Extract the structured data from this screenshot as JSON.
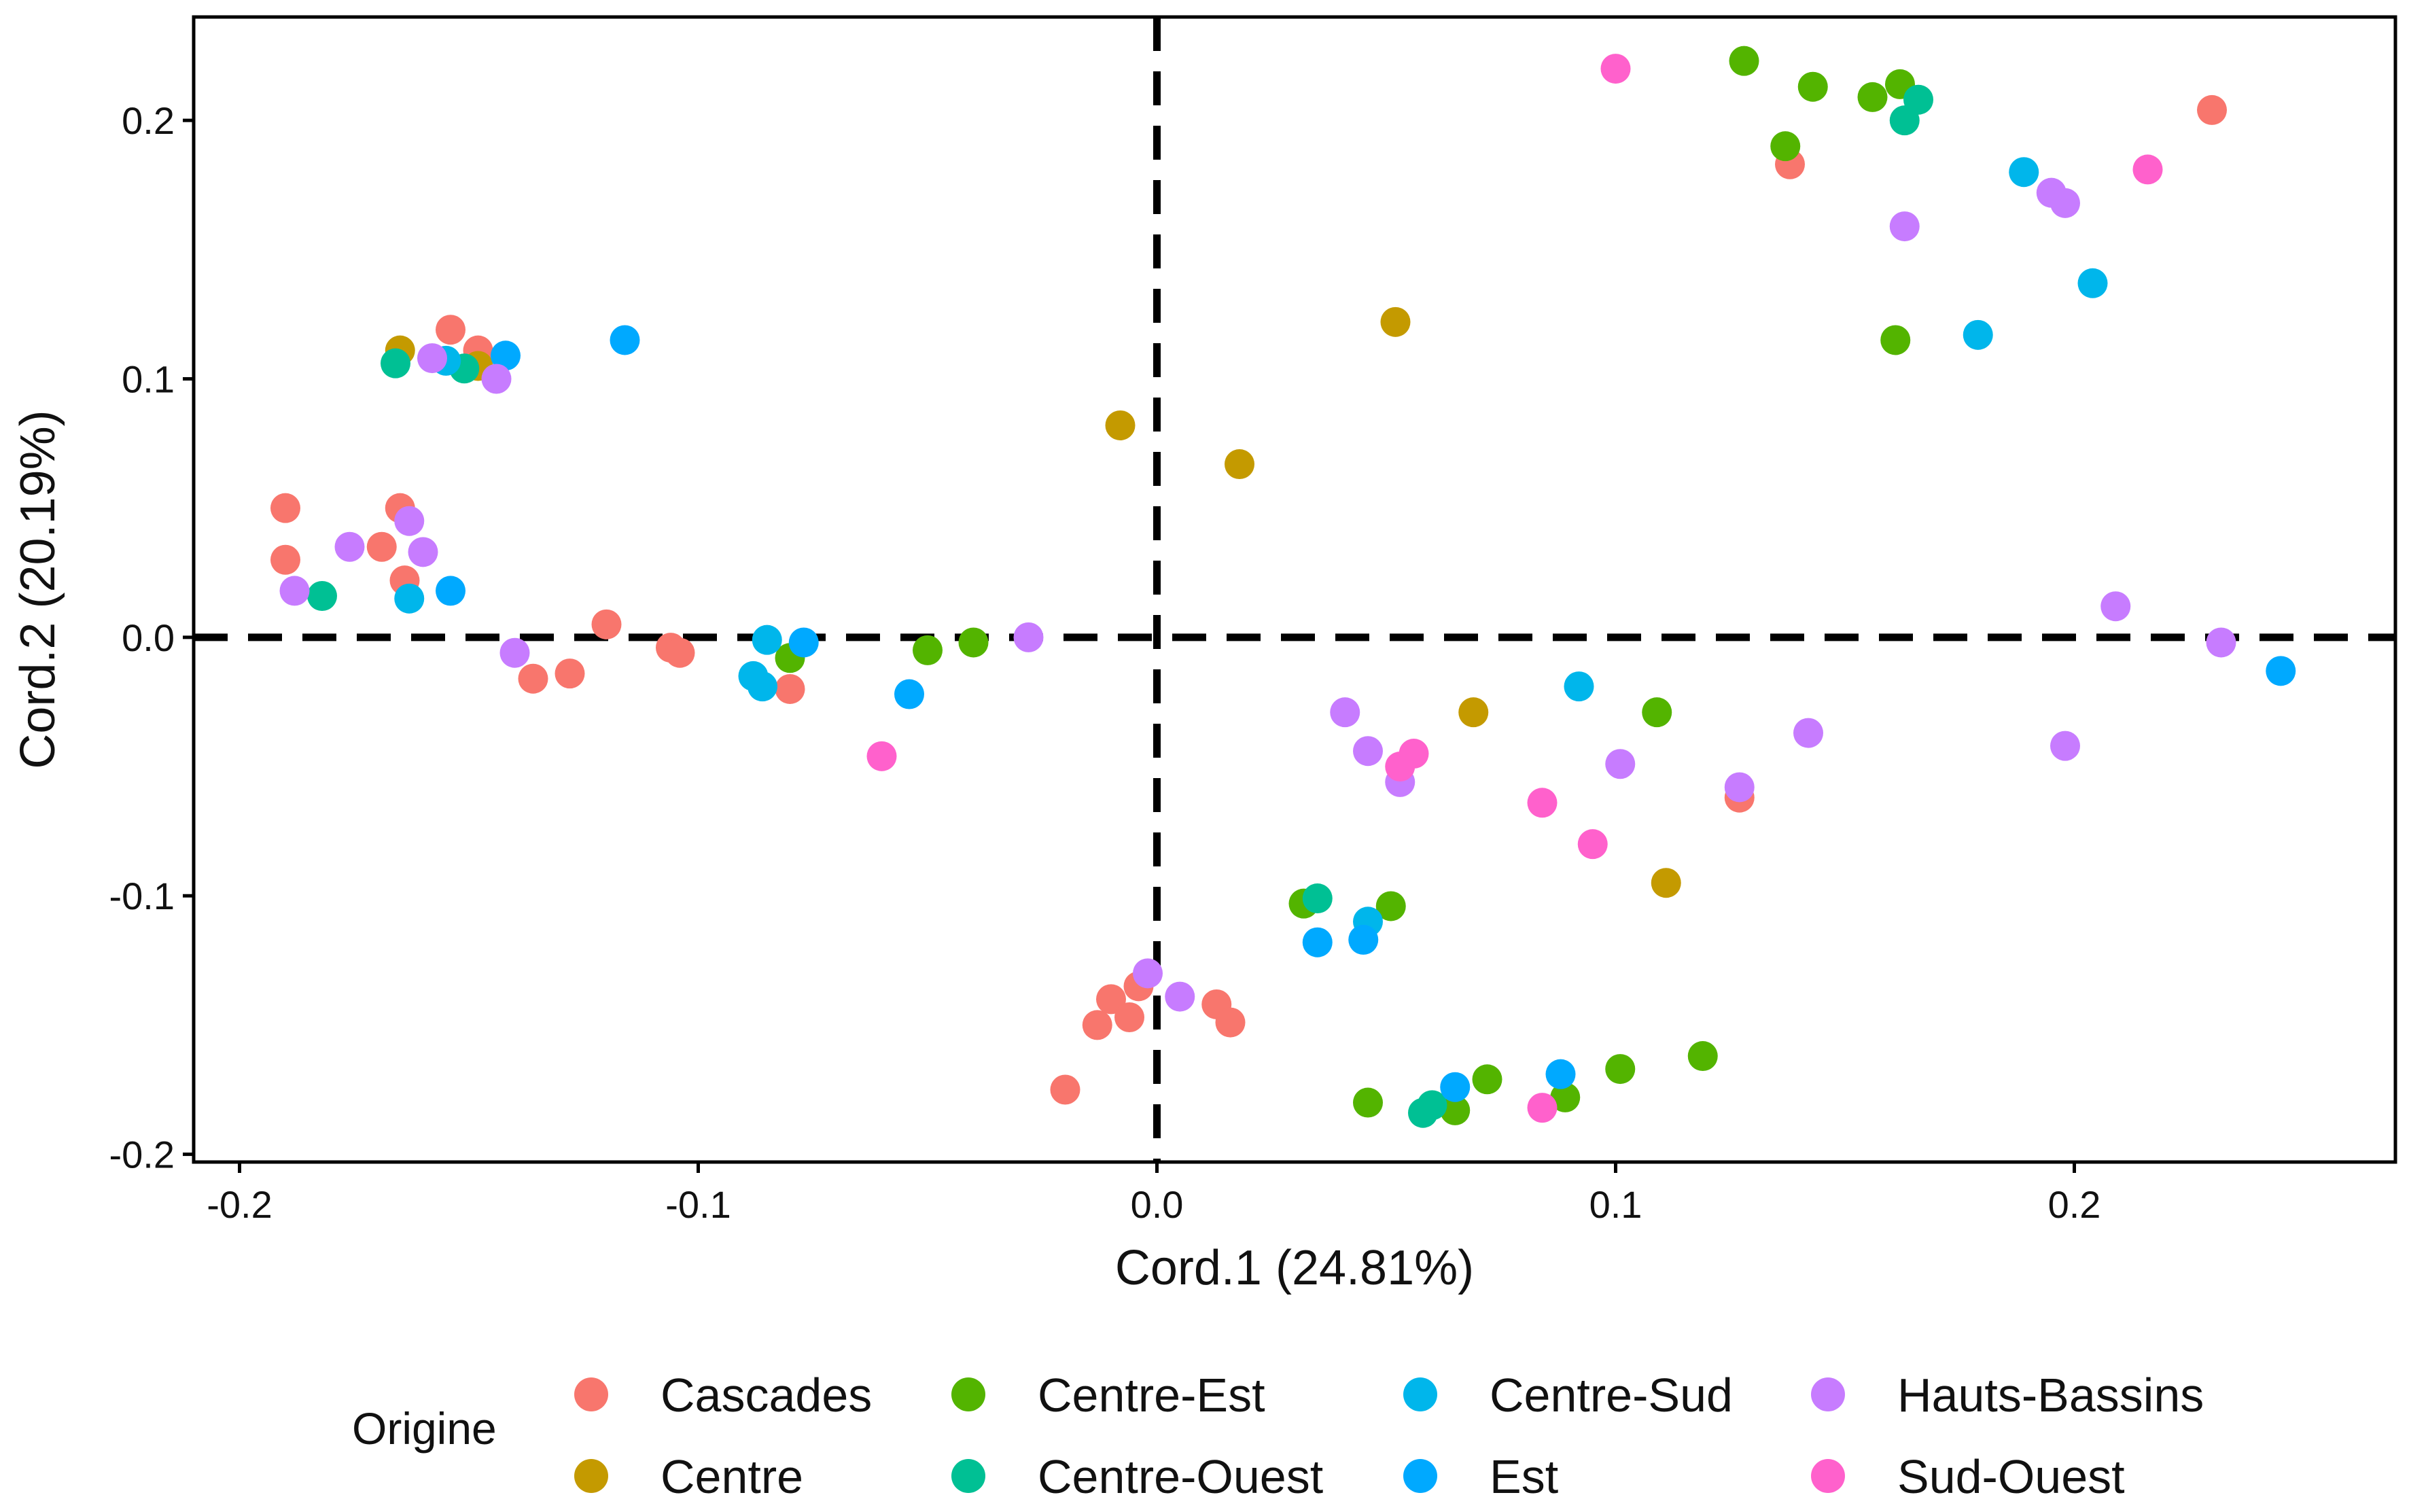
{
  "chart_data": {
    "type": "scatter",
    "title": "",
    "xlabel": "Cord.1 (24.81%)",
    "ylabel": "Cord.2 (20.19%)",
    "xlim": [
      -0.21,
      0.27
    ],
    "ylim": [
      -0.203,
      0.24
    ],
    "xticks": [
      -0.2,
      -0.1,
      0.0,
      0.1,
      0.2
    ],
    "yticks": [
      0.2,
      0.1,
      0.0,
      -0.1,
      -0.2
    ],
    "xtick_labels": [
      "-0.2",
      "-0.1",
      "0.0",
      "0.1",
      "0.2"
    ],
    "ytick_labels": [
      "0.2",
      "0.1",
      "0.0",
      "-0.1",
      "-0.2"
    ],
    "grid": false,
    "reference_lines": {
      "x": 0.0,
      "y": 0.0,
      "style": "dashed"
    },
    "legend": {
      "title": "Origine",
      "placement": "bottom",
      "columns": [
        [
          "Cascades",
          "Centre"
        ],
        [
          "Centre-Est",
          "Centre-Ouest"
        ],
        [
          "Centre-Sud",
          "Est"
        ],
        [
          "Hauts-Bassins",
          "Sud-Ouest"
        ]
      ]
    },
    "series": [
      {
        "name": "Cascades",
        "color": "#F8766D",
        "points": [
          [
            -0.19,
            0.05
          ],
          [
            -0.19,
            0.03
          ],
          [
            -0.165,
            0.05
          ],
          [
            -0.169,
            0.035
          ],
          [
            -0.164,
            0.022
          ],
          [
            -0.154,
            0.119
          ],
          [
            -0.148,
            0.111
          ],
          [
            -0.12,
            0.005
          ],
          [
            -0.106,
            -0.004
          ],
          [
            -0.104,
            -0.006
          ],
          [
            -0.136,
            -0.016
          ],
          [
            -0.128,
            -0.014
          ],
          [
            -0.08,
            -0.02
          ],
          [
            -0.02,
            -0.175
          ],
          [
            -0.013,
            -0.15
          ],
          [
            -0.01,
            -0.14
          ],
          [
            -0.006,
            -0.147
          ],
          [
            -0.004,
            -0.135
          ],
          [
            0.013,
            -0.142
          ],
          [
            0.016,
            -0.149
          ],
          [
            0.127,
            -0.062
          ],
          [
            0.138,
            0.183
          ],
          [
            0.23,
            0.204
          ]
        ]
      },
      {
        "name": "Centre",
        "color": "#C49A00",
        "points": [
          [
            -0.165,
            0.111
          ],
          [
            -0.148,
            0.105
          ],
          [
            -0.008,
            0.082
          ],
          [
            0.018,
            0.067
          ],
          [
            0.052,
            0.122
          ],
          [
            0.069,
            -0.029
          ],
          [
            0.111,
            -0.095
          ]
        ]
      },
      {
        "name": "Centre-Est",
        "color": "#53B400",
        "points": [
          [
            -0.08,
            -0.008
          ],
          [
            -0.05,
            -0.005
          ],
          [
            -0.04,
            -0.002
          ],
          [
            0.032,
            -0.103
          ],
          [
            0.051,
            -0.104
          ],
          [
            0.046,
            -0.18
          ],
          [
            0.065,
            -0.183
          ],
          [
            0.072,
            -0.171
          ],
          [
            0.089,
            -0.178
          ],
          [
            0.101,
            -0.167
          ],
          [
            0.119,
            -0.162
          ],
          [
            0.109,
            -0.029
          ],
          [
            0.128,
            0.223
          ],
          [
            0.137,
            0.19
          ],
          [
            0.143,
            0.213
          ],
          [
            0.156,
            0.209
          ],
          [
            0.161,
            0.115
          ],
          [
            0.162,
            0.214
          ]
        ]
      },
      {
        "name": "Centre-Ouest",
        "color": "#00C094",
        "points": [
          [
            -0.182,
            0.016
          ],
          [
            -0.166,
            0.106
          ],
          [
            -0.151,
            0.104
          ],
          [
            0.035,
            -0.101
          ],
          [
            0.058,
            -0.184
          ],
          [
            0.06,
            -0.181
          ],
          [
            0.163,
            0.2
          ],
          [
            0.166,
            0.208
          ]
        ]
      },
      {
        "name": "Centre-Sud",
        "color": "#00B6EB",
        "points": [
          [
            -0.163,
            0.015
          ],
          [
            -0.155,
            0.107
          ],
          [
            -0.088,
            -0.015
          ],
          [
            -0.086,
            -0.019
          ],
          [
            -0.085,
            -0.001
          ],
          [
            0.046,
            -0.11
          ],
          [
            0.092,
            -0.019
          ],
          [
            0.179,
            0.117
          ],
          [
            0.189,
            0.18
          ],
          [
            0.204,
            0.137
          ]
        ]
      },
      {
        "name": "Est",
        "color": "#00A9FF",
        "points": [
          [
            -0.154,
            0.018
          ],
          [
            -0.142,
            0.109
          ],
          [
            -0.116,
            0.115
          ],
          [
            -0.077,
            -0.002
          ],
          [
            -0.054,
            -0.022
          ],
          [
            0.035,
            -0.118
          ],
          [
            0.045,
            -0.117
          ],
          [
            0.065,
            -0.174
          ],
          [
            0.088,
            -0.169
          ],
          [
            0.245,
            -0.013
          ]
        ]
      },
      {
        "name": "Hauts-Bassins",
        "color": "#C77CFF",
        "points": [
          [
            -0.188,
            0.018
          ],
          [
            -0.176,
            0.035
          ],
          [
            -0.163,
            0.045
          ],
          [
            -0.16,
            0.033
          ],
          [
            -0.158,
            0.108
          ],
          [
            -0.144,
            0.1
          ],
          [
            -0.14,
            -0.006
          ],
          [
            -0.028,
            0.0
          ],
          [
            -0.002,
            -0.13
          ],
          [
            0.005,
            -0.139
          ],
          [
            0.041,
            -0.029
          ],
          [
            0.046,
            -0.044
          ],
          [
            0.053,
            -0.056
          ],
          [
            0.101,
            -0.049
          ],
          [
            0.127,
            -0.058
          ],
          [
            0.142,
            -0.037
          ],
          [
            0.163,
            0.159
          ],
          [
            0.195,
            0.172
          ],
          [
            0.198,
            0.168
          ],
          [
            0.198,
            -0.042
          ],
          [
            0.209,
            0.012
          ],
          [
            0.232,
            -0.002
          ]
        ]
      },
      {
        "name": "Sud-Ouest",
        "color": "#FF61CC",
        "points": [
          [
            -0.06,
            -0.046
          ],
          [
            0.053,
            -0.05
          ],
          [
            0.056,
            -0.045
          ],
          [
            0.084,
            -0.064
          ],
          [
            0.095,
            -0.08
          ],
          [
            0.084,
            -0.182
          ],
          [
            0.1,
            0.22
          ],
          [
            0.216,
            0.181
          ]
        ]
      }
    ]
  }
}
